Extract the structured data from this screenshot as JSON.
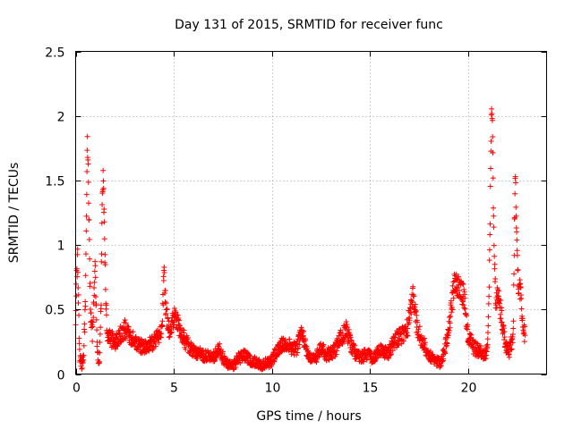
{
  "chart_data": {
    "type": "scatter",
    "title": "Day 131 of 2015, SRMTID for receiver func",
    "xlabel": "GPS time / hours",
    "ylabel": "SRMTID / TECUs",
    "xlim": [
      0,
      24
    ],
    "ylim": [
      0,
      2.5
    ],
    "xticks": [
      0,
      5,
      10,
      15,
      20
    ],
    "xtick_labels": [
      "0",
      "5",
      "10",
      "15",
      "20"
    ],
    "yticks": [
      0,
      0.5,
      1,
      1.5,
      2,
      2.5
    ],
    "ytick_labels": [
      "0",
      "0.5",
      "1",
      "1.5",
      "2",
      "2.5"
    ],
    "grid": true,
    "marker": "+",
    "marker_color": "#ff0000",
    "anchors": [
      [
        0.0,
        0.47
      ],
      [
        0.05,
        0.75
      ],
      [
        0.1,
        0.88
      ],
      [
        0.15,
        0.55
      ],
      [
        0.2,
        0.15
      ],
      [
        0.3,
        0.07
      ],
      [
        0.4,
        0.12
      ],
      [
        0.5,
        0.55
      ],
      [
        0.55,
        1.25
      ],
      [
        0.6,
        1.8
      ],
      [
        0.65,
        1.55
      ],
      [
        0.7,
        1.0
      ],
      [
        0.75,
        0.5
      ],
      [
        0.85,
        0.3
      ],
      [
        0.95,
        0.65
      ],
      [
        1.0,
        0.85
      ],
      [
        1.05,
        0.5
      ],
      [
        1.1,
        0.2
      ],
      [
        1.2,
        0.05
      ],
      [
        1.3,
        0.6
      ],
      [
        1.35,
        1.4
      ],
      [
        1.4,
        1.55
      ],
      [
        1.45,
        1.2
      ],
      [
        1.5,
        0.85
      ],
      [
        1.55,
        0.5
      ],
      [
        1.6,
        0.3
      ],
      [
        2.0,
        0.25
      ],
      [
        2.5,
        0.35
      ],
      [
        3.0,
        0.25
      ],
      [
        3.5,
        0.2
      ],
      [
        4.0,
        0.25
      ],
      [
        4.4,
        0.35
      ],
      [
        4.5,
        0.78
      ],
      [
        4.6,
        0.5
      ],
      [
        4.8,
        0.3
      ],
      [
        5.0,
        0.45
      ],
      [
        5.3,
        0.35
      ],
      [
        5.6,
        0.25
      ],
      [
        6.0,
        0.18
      ],
      [
        6.5,
        0.15
      ],
      [
        7.0,
        0.12
      ],
      [
        7.3,
        0.2
      ],
      [
        7.6,
        0.1
      ],
      [
        8.0,
        0.06
      ],
      [
        8.3,
        0.12
      ],
      [
        8.6,
        0.15
      ],
      [
        9.0,
        0.1
      ],
      [
        9.5,
        0.07
      ],
      [
        10.0,
        0.1
      ],
      [
        10.3,
        0.2
      ],
      [
        10.7,
        0.25
      ],
      [
        11.0,
        0.2
      ],
      [
        11.3,
        0.2
      ],
      [
        11.5,
        0.38
      ],
      [
        11.6,
        0.3
      ],
      [
        11.8,
        0.15
      ],
      [
        12.2,
        0.12
      ],
      [
        12.5,
        0.2
      ],
      [
        12.8,
        0.15
      ],
      [
        13.2,
        0.18
      ],
      [
        13.5,
        0.28
      ],
      [
        13.8,
        0.34
      ],
      [
        14.1,
        0.2
      ],
      [
        14.4,
        0.13
      ],
      [
        14.8,
        0.15
      ],
      [
        15.2,
        0.12
      ],
      [
        15.6,
        0.2
      ],
      [
        15.9,
        0.15
      ],
      [
        16.2,
        0.25
      ],
      [
        16.6,
        0.3
      ],
      [
        16.9,
        0.35
      ],
      [
        17.2,
        0.6
      ],
      [
        17.4,
        0.35
      ],
      [
        17.7,
        0.25
      ],
      [
        18.0,
        0.15
      ],
      [
        18.3,
        0.1
      ],
      [
        18.6,
        0.08
      ],
      [
        18.9,
        0.25
      ],
      [
        19.1,
        0.45
      ],
      [
        19.3,
        0.72
      ],
      [
        19.6,
        0.65
      ],
      [
        19.8,
        0.6
      ],
      [
        20.0,
        0.3
      ],
      [
        20.3,
        0.2
      ],
      [
        20.6,
        0.18
      ],
      [
        20.9,
        0.15
      ],
      [
        21.0,
        0.22
      ],
      [
        21.1,
        0.9
      ],
      [
        21.15,
        1.6
      ],
      [
        21.2,
        2.08
      ],
      [
        21.25,
        1.85
      ],
      [
        21.3,
        1.2
      ],
      [
        21.4,
        0.6
      ],
      [
        21.6,
        0.55
      ],
      [
        21.8,
        0.35
      ],
      [
        21.9,
        0.2
      ],
      [
        22.1,
        0.18
      ],
      [
        22.3,
        0.3
      ],
      [
        22.35,
        1.0
      ],
      [
        22.4,
        1.6
      ],
      [
        22.45,
        1.2
      ],
      [
        22.55,
        0.7
      ],
      [
        22.7,
        0.6
      ],
      [
        22.8,
        0.35
      ],
      [
        22.9,
        0.3
      ]
    ]
  }
}
